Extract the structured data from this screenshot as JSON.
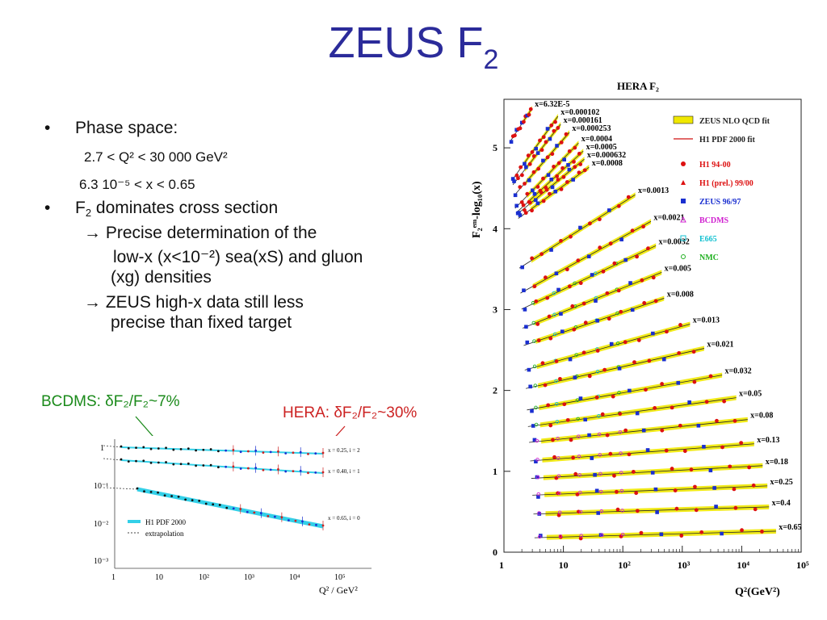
{
  "slide": {
    "title": "ZEUS F",
    "title_sub": "2"
  },
  "bullets": {
    "b1": "Phase space:",
    "q2_range": "2.7 < Q² < 30 000 GeV²",
    "x_range": "6.3 10⁻⁵ < x < 0.65",
    "b2_pre": "F",
    "b2_sub": "2",
    "b2_post": " dominates cross section",
    "sub1_line1": "→ Precise determination of the",
    "sub1_line2": "low-x (x<10⁻²) sea(xS) and gluon",
    "sub1_line3": "(xg) densities",
    "sub2_line1": "→ ZEUS high-x data still less",
    "sub2_line2": "precise than fixed target"
  },
  "annotations": {
    "bcdms": "BCDMS: δF₂/F₂~7%",
    "hera": "HERA: δF₂/F₂~30%",
    "bcdms_color": "#1a8a1a",
    "hera_color": "#cc2222"
  },
  "small_plot": {
    "legend_h1": "H1 PDF 2000",
    "legend_extrap": "extrapolation",
    "xlabel": "Q² / GeV²",
    "curve_labels": [
      "x = 0.25, i = 2",
      "x = 0.40, i = 1",
      "x = 0.65, i = 0"
    ],
    "y_ticks": [
      "1",
      "10⁻¹",
      "10⁻²",
      "10⁻³"
    ],
    "x_ticks": [
      "1",
      "10",
      "10²",
      "10³",
      "10⁴",
      "10⁵"
    ]
  },
  "chart_data": {
    "type": "scatter",
    "title": "HERA F₂",
    "ylabel": "F₂ᵉᵐ-log₁₀(x)",
    "xlabel": "Q²(GeV²)",
    "x_scale": "log",
    "xlim": [
      1,
      100000
    ],
    "ylim": [
      0,
      5.6
    ],
    "x_ticks": [
      "1",
      "10",
      "10²",
      "10³",
      "10⁴",
      "10⁵"
    ],
    "y_ticks": [
      "0",
      "1",
      "2",
      "3",
      "4",
      "5"
    ],
    "legend": [
      {
        "label": "ZEUS NLO QCD fit",
        "color": "#f0e800"
      },
      {
        "label": "H1 PDF 2000 fit",
        "color": "#d01010"
      },
      {
        "label": "H1 94-00",
        "color": "#dd1111"
      },
      {
        "label": "H1 (prel.) 99/00",
        "color": "#dd1111"
      },
      {
        "label": "ZEUS 96/97",
        "color": "#1a2fd0"
      },
      {
        "label": "BCDMS",
        "color": "#d020d0"
      },
      {
        "label": "E665",
        "color": "#10c0d0"
      },
      {
        "label": "NMC",
        "color": "#20b020"
      }
    ],
    "series_labels": [
      "x=6.32E-5",
      "x=0.000102",
      "x=0.000161",
      "x=0.000253",
      "x=0.0004",
      "x=0.0005",
      "x=0.000632",
      "x=0.0008",
      "x=0.0013",
      "x=0.0021",
      "x=0.0032",
      "x=0.005",
      "x=0.008",
      "x=0.013",
      "x=0.021",
      "x=0.032",
      "x=0.05",
      "x=0.08",
      "x=0.13",
      "x=0.18",
      "x=0.25",
      "x=0.4",
      "x=0.65"
    ]
  }
}
